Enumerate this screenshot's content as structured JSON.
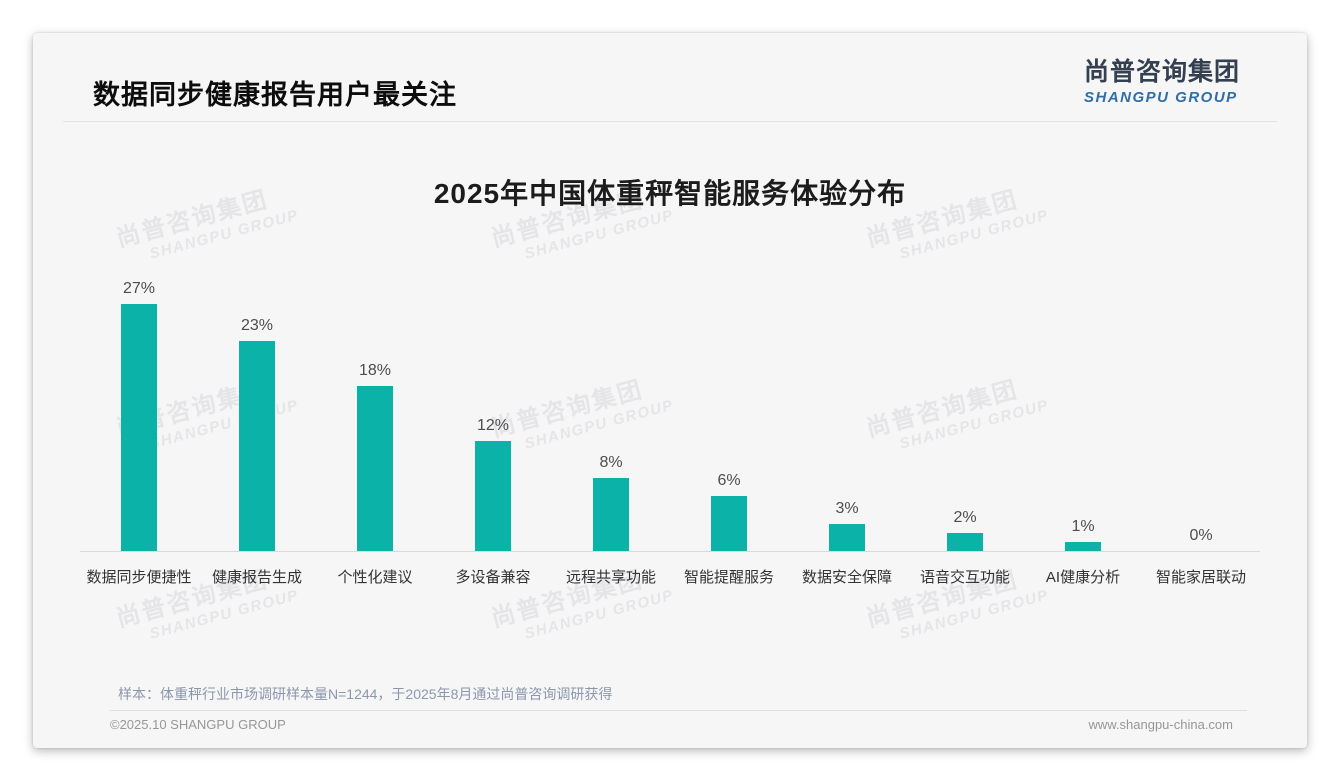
{
  "page": {
    "title": "数据同步健康报告用户最关注"
  },
  "logo": {
    "cn": "尚普咨询集团",
    "en": "SHANGPU GROUP"
  },
  "watermark": {
    "line1": "尚普咨询集团",
    "line2": "SHANGPU GROUP"
  },
  "chart_data": {
    "type": "bar",
    "title": "2025年中国体重秤智能服务体验分布",
    "categories": [
      "数据同步便捷性",
      "健康报告生成",
      "个性化建议",
      "多设备兼容",
      "远程共享功能",
      "智能提醒服务",
      "数据安全保障",
      "语音交互功能",
      "AI健康分析",
      "智能家居联动"
    ],
    "values": [
      27,
      23,
      18,
      12,
      8,
      6,
      3,
      2,
      1,
      0
    ],
    "unit": "%",
    "xlabel": "",
    "ylabel": "",
    "ylim": [
      0,
      30
    ],
    "grid": false,
    "legend": false,
    "bar_color": "#0bb2a8"
  },
  "note": "样本：体重秤行业市场调研样本量N=1244，于2025年8月通过尚普咨询调研获得",
  "footer": {
    "copyright": "©2025.10 SHANGPU GROUP",
    "website": "www.shangpu-china.com"
  },
  "colors": {
    "bar": "#0bb2a8",
    "logo_cn": "#344050",
    "logo_en": "#2f6ea8",
    "note": "#8b97ab",
    "card_bg": "#f6f6f7"
  }
}
